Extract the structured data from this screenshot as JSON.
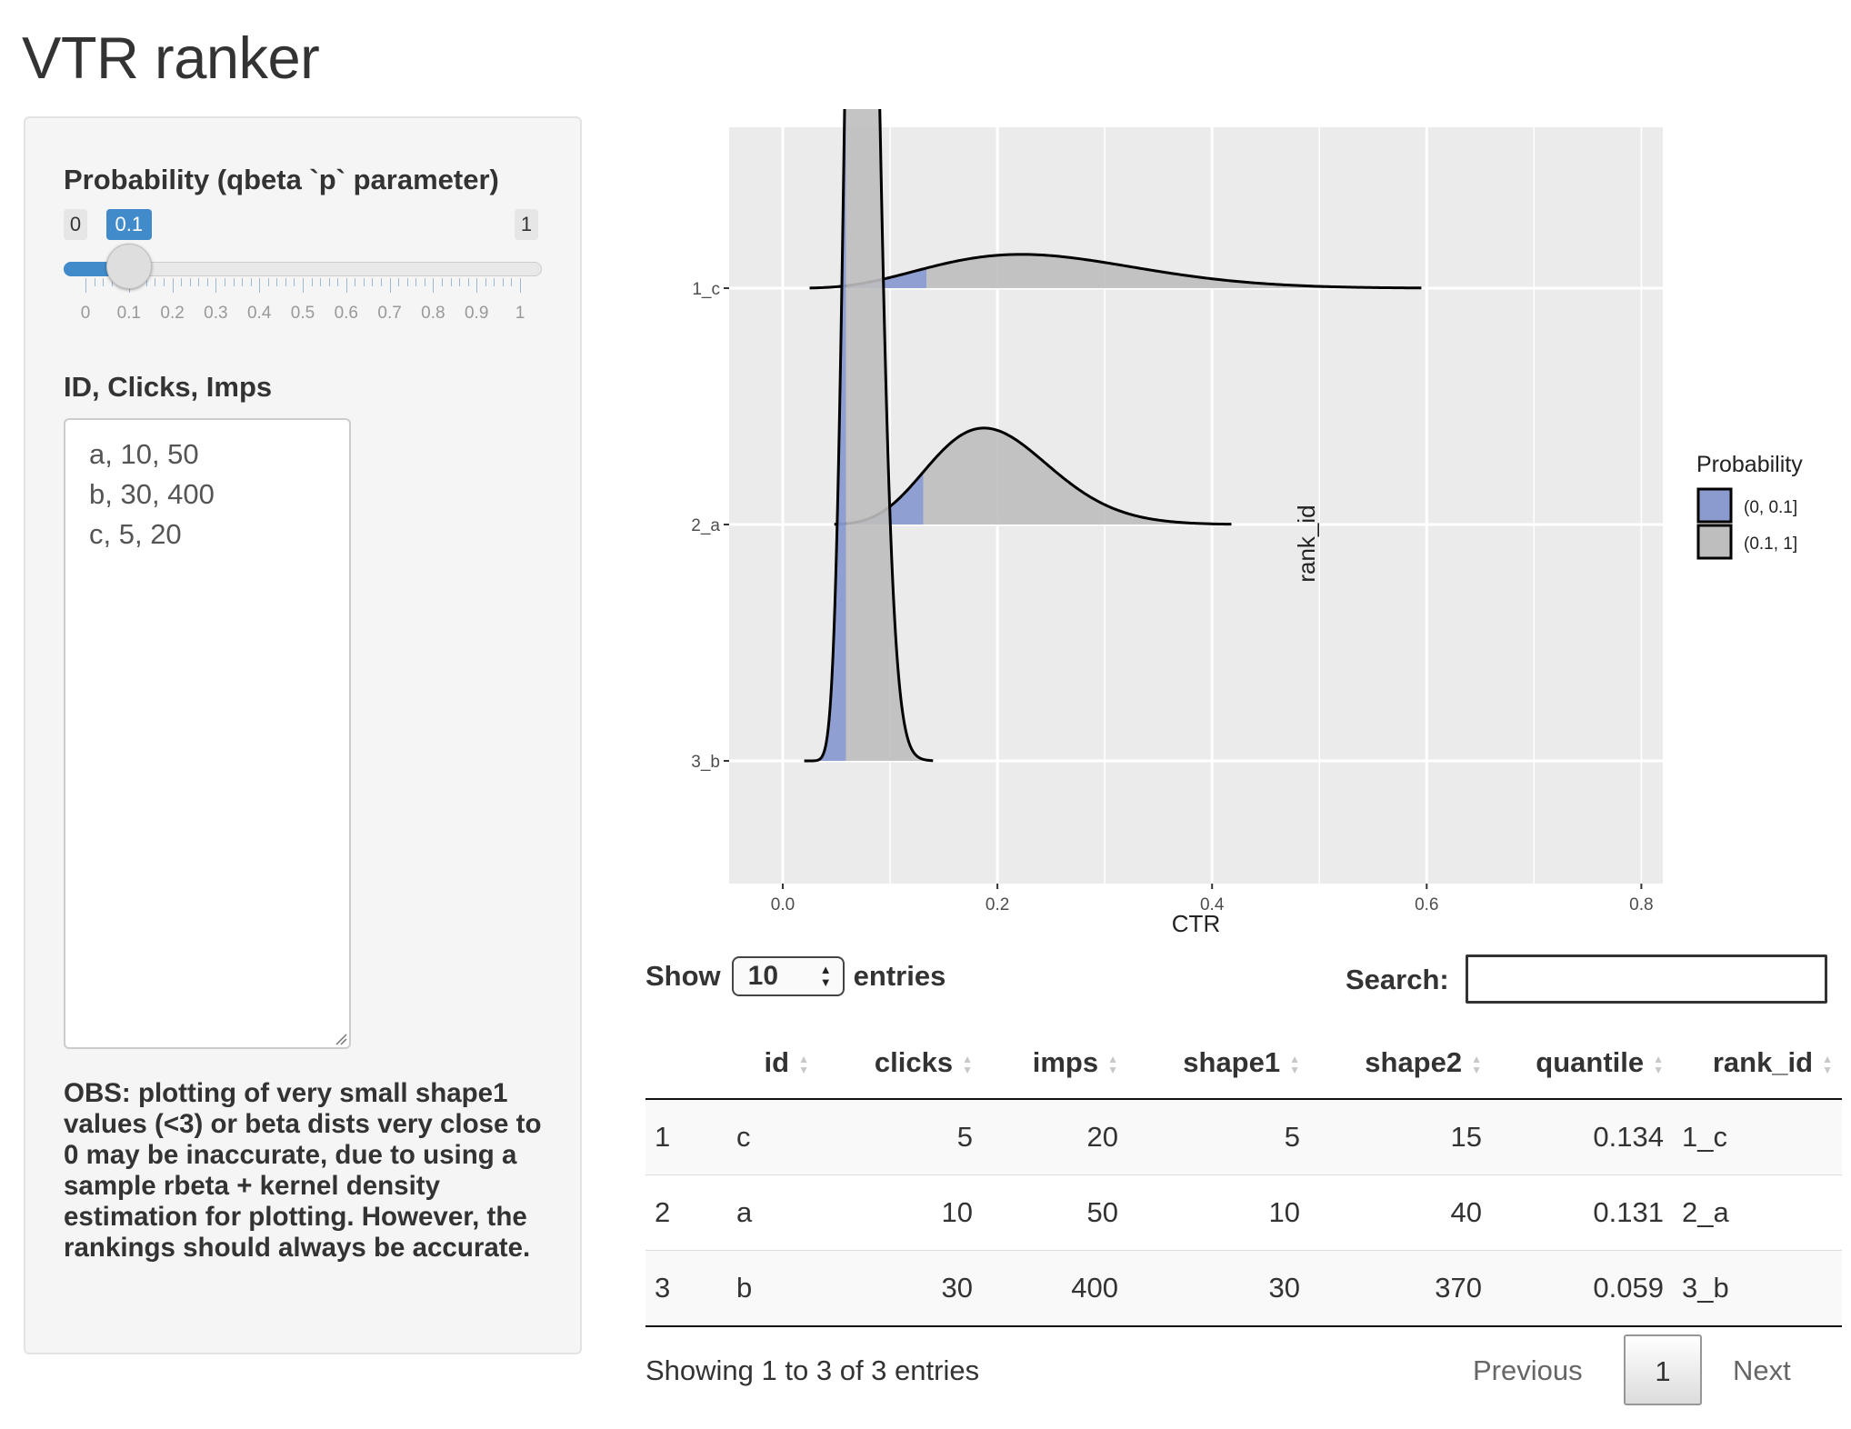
{
  "app": {
    "title": "VTR ranker"
  },
  "sidebar": {
    "slider": {
      "label": "Probability (qbeta `p` parameter)",
      "min": 0,
      "max": 1,
      "value": 0.1,
      "min_label": "0",
      "max_label": "1",
      "value_label": "0.1",
      "grid_labels": [
        "0",
        "0.1",
        "0.2",
        "0.3",
        "0.4",
        "0.5",
        "0.6",
        "0.7",
        "0.8",
        "0.9",
        "1"
      ]
    },
    "textarea": {
      "label": "ID, Clicks, Imps",
      "value": "a, 10, 50\nb, 30, 400\nc, 5, 20"
    },
    "note": "OBS: plotting of very small shape1 values (<3) or beta dists very close to 0 may be inaccurate, due to using a sample rbeta + kernel density estimation for plotting. However, the rankings should always be accurate."
  },
  "chart_data": {
    "type": "area",
    "title": "",
    "xlabel": "CTR",
    "ylabel": "rank_id",
    "xlim": [
      -0.05,
      0.82
    ],
    "x_ticks": [
      0.0,
      0.2,
      0.4,
      0.6,
      0.8
    ],
    "x_tick_labels": [
      "0.0",
      "0.2",
      "0.4",
      "0.6",
      "0.8"
    ],
    "categories": [
      "1_c",
      "2_a",
      "3_b"
    ],
    "grid": true,
    "legend": {
      "title": "Probability",
      "position": "right",
      "entries": [
        {
          "label": "(0, 0.1]",
          "color": "#8b9bd0"
        },
        {
          "label": "(0.1, 1]",
          "color": "#bebebe"
        }
      ]
    },
    "series": [
      {
        "rank_id": "1_c",
        "shape1": 5,
        "shape2": 15,
        "quantile": 0.134,
        "x_min": 0.025,
        "x_max": 0.595,
        "scale": 0.34
      },
      {
        "rank_id": "2_a",
        "shape1": 10,
        "shape2": 40,
        "quantile": 0.131,
        "x_min": 0.048,
        "x_max": 0.418,
        "scale": 0.57
      },
      {
        "rank_id": "3_b",
        "shape1": 30,
        "shape2": 370,
        "quantile": 0.059,
        "x_min": 0.02,
        "x_max": 0.14,
        "scale": 1.99
      }
    ]
  },
  "table": {
    "show_label": "Show",
    "entries_label": "entries",
    "page_length": "10",
    "search_label": "Search:",
    "search_value": "",
    "columns": [
      "",
      "id",
      "clicks",
      "imps",
      "shape1",
      "shape2",
      "quantile",
      "rank_id"
    ],
    "rows": [
      [
        "1",
        "c",
        "5",
        "20",
        "5",
        "15",
        "0.134",
        "1_c"
      ],
      [
        "2",
        "a",
        "10",
        "50",
        "10",
        "40",
        "0.131",
        "2_a"
      ],
      [
        "3",
        "b",
        "30",
        "400",
        "30",
        "370",
        "0.059",
        "3_b"
      ]
    ],
    "info": "Showing 1 to 3 of 3 entries",
    "pagination": {
      "previous": "Previous",
      "current": "1",
      "next": "Next"
    }
  }
}
